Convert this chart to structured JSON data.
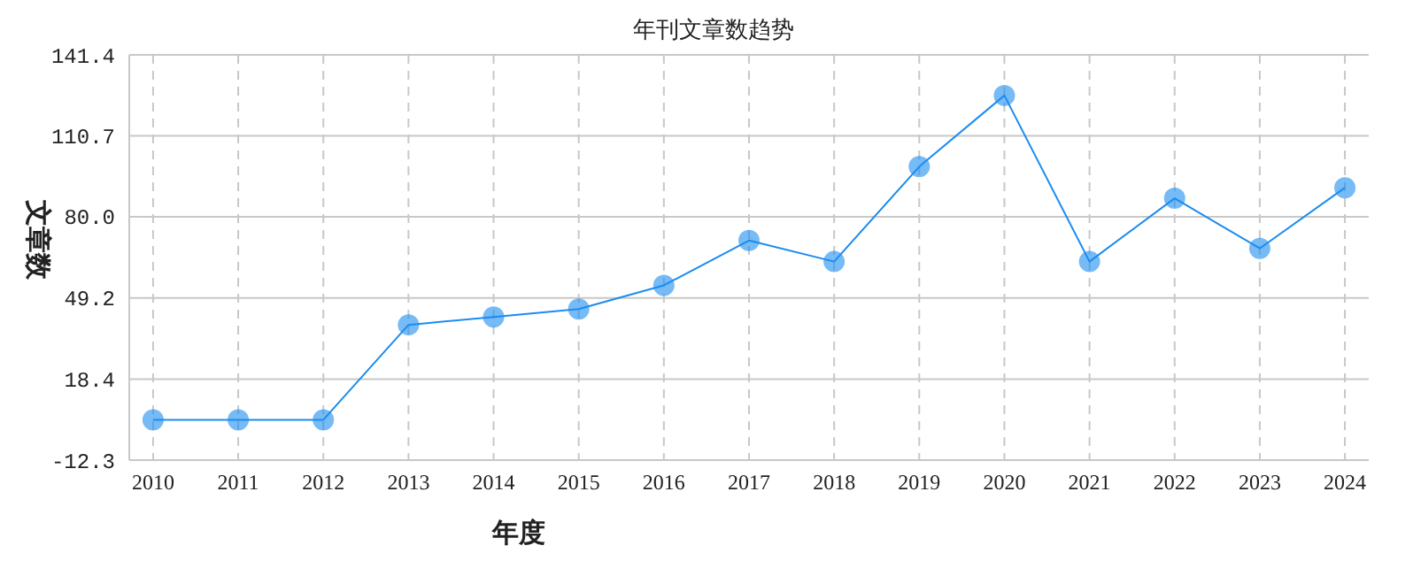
{
  "chart_data": {
    "type": "line",
    "title": "年刊文章数趋势",
    "xlabel": "年度",
    "ylabel": "文章数",
    "categories": [
      "2010",
      "2011",
      "2012",
      "2013",
      "2014",
      "2015",
      "2016",
      "2017",
      "2018",
      "2019",
      "2020",
      "2021",
      "2022",
      "2023",
      "2024"
    ],
    "series": [
      {
        "color": "#1a8cf0",
        "values": [
          3,
          3,
          3,
          39,
          42,
          45,
          54,
          71,
          63,
          99,
          126,
          63,
          87,
          68,
          91
        ]
      }
    ],
    "ylim": [
      -12.3,
      141.4
    ],
    "yticks": [
      {
        "value": -12.3,
        "label": "-12.3"
      },
      {
        "value": 18.4,
        "label": "18.4"
      },
      {
        "value": 49.2,
        "label": "49.2"
      },
      {
        "value": 80,
        "label": "80.0"
      },
      {
        "value": 110.7,
        "label": "110.7"
      },
      {
        "value": 141.4,
        "label": "141.4"
      }
    ],
    "grid": true,
    "marker": "circle"
  }
}
